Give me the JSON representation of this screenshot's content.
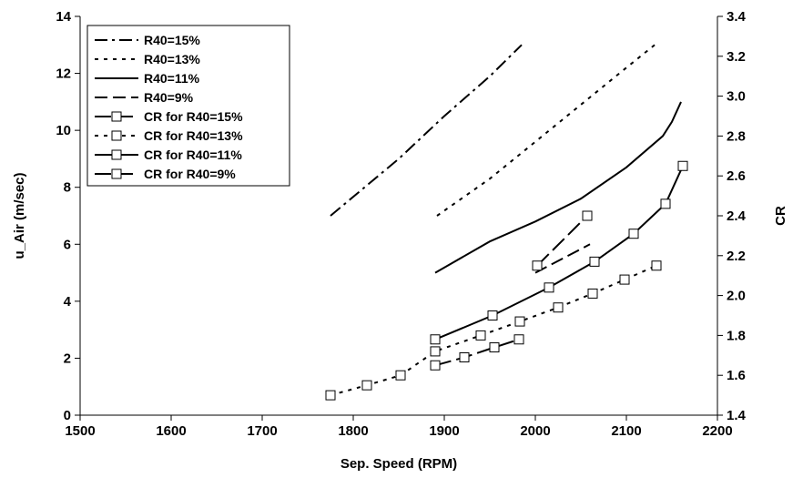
{
  "chart_data": {
    "type": "line",
    "title": "",
    "xlabel": "Sep. Speed (RPM)",
    "ylabel": "u_Air (m/sec)",
    "y2label": "CR",
    "xlim": [
      1500,
      2200
    ],
    "ylim": [
      0,
      14
    ],
    "y2lim": [
      1.4,
      3.4
    ],
    "xticks": [
      "1500",
      "1600",
      "1700",
      "1800",
      "1900",
      "2000",
      "2100",
      "2200"
    ],
    "yticks": [
      "0",
      "2",
      "4",
      "6",
      "8",
      "10",
      "12",
      "14"
    ],
    "y2ticks": [
      "1.4",
      "1.6",
      "1.8",
      "2.0",
      "2.2",
      "2.4",
      "2.6",
      "2.8",
      "3.0",
      "3.2",
      "3.4"
    ],
    "grid": false,
    "legend_position": "top-left",
    "series": [
      {
        "name": "R40=15%",
        "axis": "left",
        "dash": "dashdot",
        "marker": false,
        "x": [
          1775,
          1850,
          1900,
          1950,
          1985
        ],
        "y": [
          7.0,
          9.0,
          10.5,
          11.9,
          13.0
        ]
      },
      {
        "name": "R40=13%",
        "axis": "left",
        "dash": "dot",
        "marker": false,
        "x": [
          1892,
          1950,
          2000,
          2050,
          2100,
          2135
        ],
        "y": [
          7.0,
          8.3,
          9.6,
          10.9,
          12.2,
          13.1
        ]
      },
      {
        "name": "R40=11%",
        "axis": "left",
        "dash": "solid",
        "marker": false,
        "x": [
          1890,
          1950,
          2000,
          2050,
          2100,
          2140,
          2150,
          2160
        ],
        "y": [
          5.0,
          6.1,
          6.8,
          7.6,
          8.7,
          9.8,
          10.3,
          11.0
        ]
      },
      {
        "name": "R40=9%",
        "axis": "left",
        "dash": "dash",
        "marker": false,
        "x": [
          2000,
          2060
        ],
        "y": [
          5.0,
          6.0
        ]
      },
      {
        "name": "CR for R40=15%",
        "axis": "right",
        "dash": "longdash",
        "marker": true,
        "x": [
          1890,
          1922,
          1955,
          1982
        ],
        "y": [
          1.65,
          1.69,
          1.74,
          1.78
        ]
      },
      {
        "name": "CR for R40=13%",
        "axis": "right",
        "dash": "dot",
        "marker": true,
        "x": [
          1775,
          1815,
          1852,
          1890,
          1940,
          1983,
          2025,
          2063,
          2098,
          2133
        ],
        "y": [
          1.5,
          1.55,
          1.6,
          1.72,
          1.8,
          1.87,
          1.94,
          2.01,
          2.08,
          2.15
        ]
      },
      {
        "name": "CR for R40=11%",
        "axis": "right",
        "dash": "solid",
        "marker": true,
        "x": [
          1890,
          1953,
          2015,
          2065,
          2108,
          2143,
          2162
        ],
        "y": [
          1.78,
          1.9,
          2.04,
          2.17,
          2.31,
          2.46,
          2.65
        ]
      },
      {
        "name": "CR for R40=9%",
        "axis": "right",
        "dash": "longdash",
        "marker": true,
        "x": [
          2002,
          2057
        ],
        "y": [
          2.15,
          2.4
        ]
      }
    ]
  }
}
